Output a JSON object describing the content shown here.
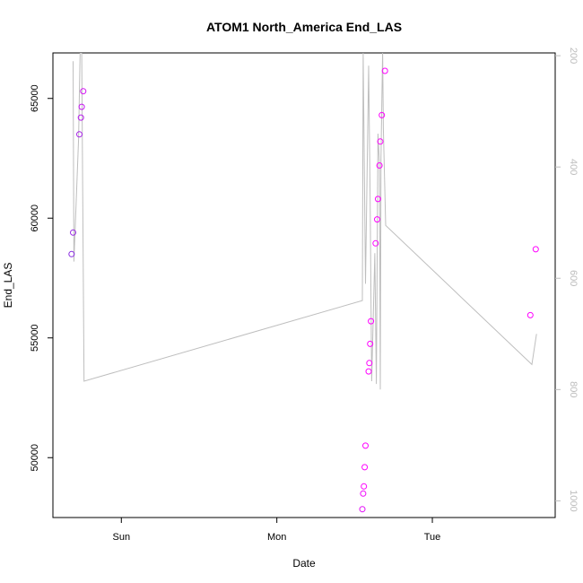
{
  "chart_data": {
    "type": "scatter",
    "title": "ATOM1 North_America End_LAS",
    "xlabel": "Date",
    "ylabel": "End_LAS",
    "x_ticks": [
      {
        "label": "Sun",
        "x": 0
      },
      {
        "label": "Mon",
        "x": 1
      },
      {
        "label": "Tue",
        "x": 2
      }
    ],
    "xlim": [
      -0.44,
      2.79
    ],
    "ylim": [
      47500,
      66900
    ],
    "y_ticks": [
      50000,
      55000,
      60000,
      65000
    ],
    "y2lim": [
      1030,
      195
    ],
    "y2_ticks": [
      200,
      400,
      600,
      800,
      1000
    ],
    "grid": false,
    "colors": {
      "line": "#bebebe",
      "points": "#e100ff",
      "axis": "#000000",
      "right_axis": "#bdbdbd"
    },
    "series": [
      {
        "kind": "points",
        "axis": "left",
        "color_start": "#8a2be2",
        "color_end": "#ff00ff",
        "points": [
          [
            -0.32,
            58500
          ],
          [
            -0.31,
            59400
          ],
          [
            -0.27,
            63500
          ],
          [
            -0.26,
            64200
          ],
          [
            -0.255,
            64650
          ],
          [
            -0.245,
            65300
          ],
          [
            1.55,
            47850
          ],
          [
            1.555,
            48500
          ],
          [
            1.56,
            48800
          ],
          [
            1.565,
            49600
          ],
          [
            1.57,
            50500
          ],
          [
            1.59,
            53600
          ],
          [
            1.595,
            53950
          ],
          [
            1.6,
            54750
          ],
          [
            1.605,
            55700
          ],
          [
            1.635,
            58950
          ],
          [
            1.645,
            59950
          ],
          [
            1.65,
            60800
          ],
          [
            1.66,
            62200
          ],
          [
            1.665,
            63200
          ],
          [
            1.675,
            64300
          ],
          [
            1.695,
            66150
          ],
          [
            2.63,
            55950
          ],
          [
            2.665,
            58700
          ]
        ]
      },
      {
        "kind": "line",
        "axis": "right",
        "points": [
          [
            -0.31,
            210
          ],
          [
            -0.305,
            570
          ],
          [
            -0.275,
            350
          ],
          [
            -0.265,
            195
          ],
          [
            -0.255,
            195
          ],
          [
            -0.24,
            785
          ],
          [
            1.55,
            640
          ],
          [
            1.555,
            195
          ],
          [
            1.57,
            610
          ],
          [
            1.59,
            218
          ],
          [
            1.6,
            460
          ],
          [
            1.61,
            785
          ],
          [
            1.63,
            555
          ],
          [
            1.64,
            790
          ],
          [
            1.65,
            340
          ],
          [
            1.66,
            395
          ],
          [
            1.665,
            800
          ],
          [
            1.67,
            380
          ],
          [
            1.68,
            190
          ],
          [
            1.685,
            330
          ],
          [
            1.7,
            505
          ],
          [
            2.64,
            755
          ],
          [
            2.67,
            700
          ]
        ]
      }
    ]
  }
}
